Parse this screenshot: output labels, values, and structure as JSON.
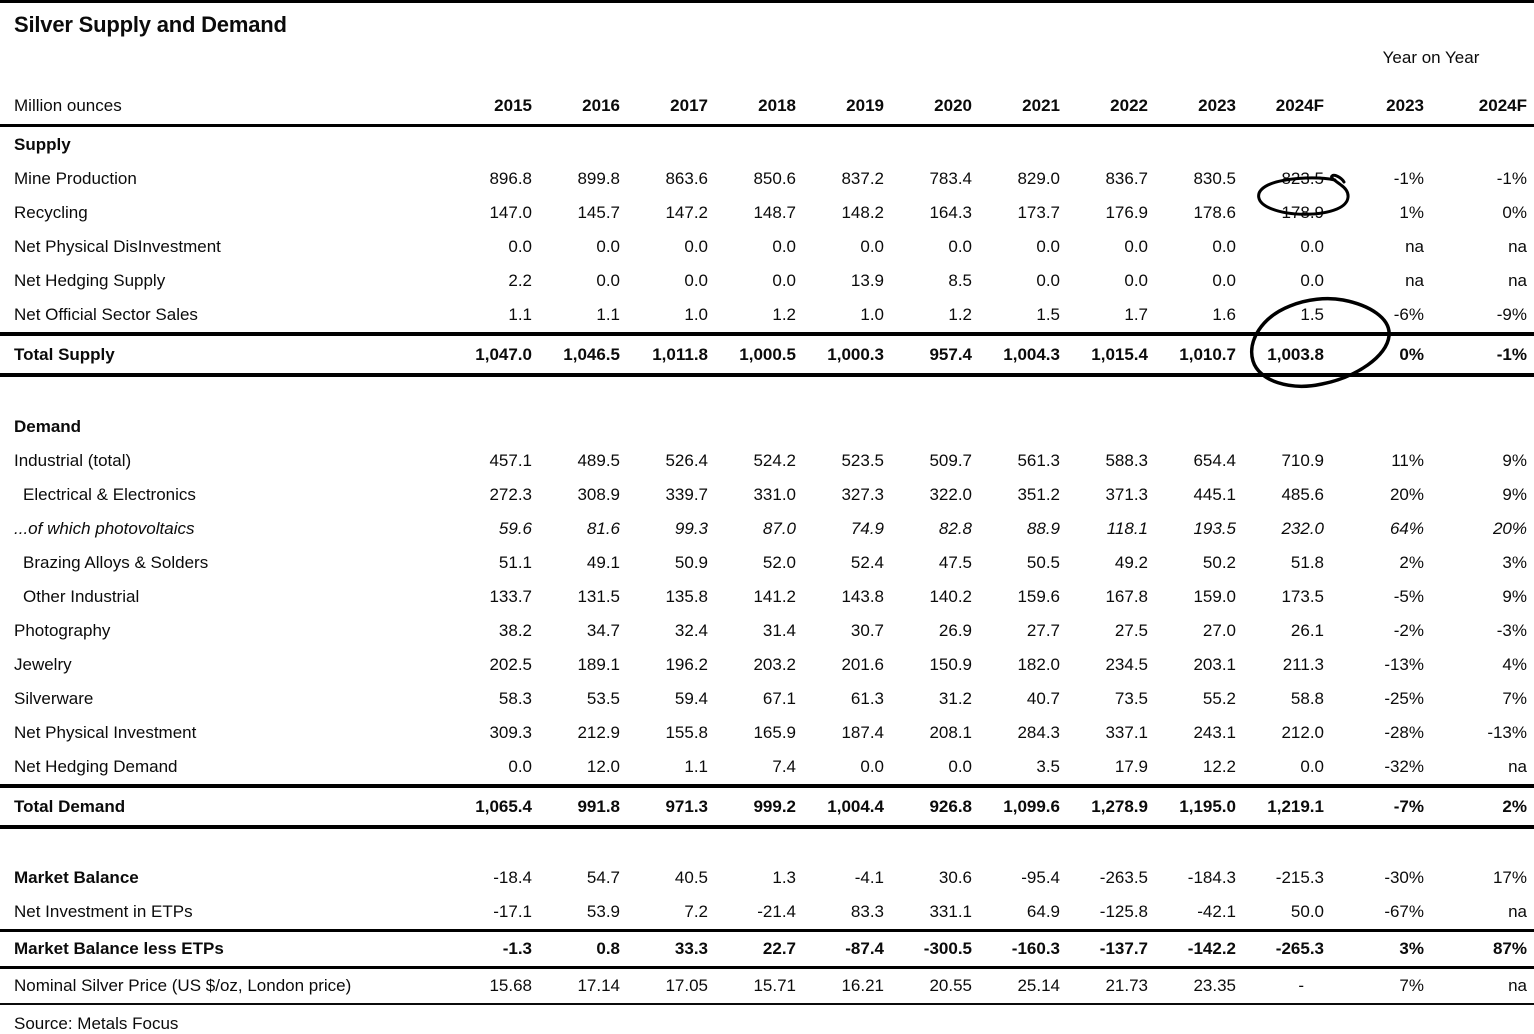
{
  "title": "Silver Supply and Demand",
  "unit_label": "Million ounces",
  "year_on_year_label": "Year on Year",
  "columns": [
    "2015",
    "2016",
    "2017",
    "2018",
    "2019",
    "2020",
    "2021",
    "2022",
    "2023",
    "2024F"
  ],
  "yoy_columns": [
    "2023",
    "2024F"
  ],
  "source": "Source: Metals Focus",
  "table": {
    "sections": [
      {
        "header": "Supply",
        "rows": [
          {
            "label": "Mine Production",
            "values": [
              "896.8",
              "899.8",
              "863.6",
              "850.6",
              "837.2",
              "783.4",
              "829.0",
              "836.7",
              "830.5",
              "823.5",
              "-1%",
              "-1%"
            ]
          },
          {
            "label": "Recycling",
            "values": [
              "147.0",
              "145.7",
              "147.2",
              "148.7",
              "148.2",
              "164.3",
              "173.7",
              "176.9",
              "178.6",
              "178.9",
              "1%",
              "0%"
            ]
          },
          {
            "label": "Net Physical DisInvestment",
            "values": [
              "0.0",
              "0.0",
              "0.0",
              "0.0",
              "0.0",
              "0.0",
              "0.0",
              "0.0",
              "0.0",
              "0.0",
              "na",
              "na"
            ]
          },
          {
            "label": "Net Hedging Supply",
            "values": [
              "2.2",
              "0.0",
              "0.0",
              "0.0",
              "13.9",
              "8.5",
              "0.0",
              "0.0",
              "0.0",
              "0.0",
              "na",
              "na"
            ]
          },
          {
            "label": "Net Official Sector Sales",
            "values": [
              "1.1",
              "1.1",
              "1.0",
              "1.2",
              "1.0",
              "1.2",
              "1.5",
              "1.7",
              "1.6",
              "1.5",
              "-6%",
              "-9%"
            ]
          }
        ],
        "total": {
          "label": "Total Supply",
          "variant": "heavy",
          "values": [
            "1,047.0",
            "1,046.5",
            "1,011.8",
            "1,000.5",
            "1,000.3",
            "957.4",
            "1,004.3",
            "1,015.4",
            "1,010.7",
            "1,003.8",
            "0%",
            "-1%"
          ]
        },
        "gap_after": true
      },
      {
        "header": "Demand",
        "rows": [
          {
            "label": "Industrial (total)",
            "values": [
              "457.1",
              "489.5",
              "526.4",
              "524.2",
              "523.5",
              "509.7",
              "561.3",
              "588.3",
              "654.4",
              "710.9",
              "11%",
              "9%"
            ]
          },
          {
            "label": "Electrical & Electronics",
            "indent": true,
            "values": [
              "272.3",
              "308.9",
              "339.7",
              "331.0",
              "327.3",
              "322.0",
              "351.2",
              "371.3",
              "445.1",
              "485.6",
              "20%",
              "9%"
            ]
          },
          {
            "label": "...of which photovoltaics",
            "em": true,
            "values": [
              "59.6",
              "81.6",
              "99.3",
              "87.0",
              "74.9",
              "82.8",
              "88.9",
              "118.1",
              "193.5",
              "232.0",
              "64%",
              "20%"
            ]
          },
          {
            "label": "Brazing Alloys & Solders",
            "indent": true,
            "values": [
              "51.1",
              "49.1",
              "50.9",
              "52.0",
              "52.4",
              "47.5",
              "50.5",
              "49.2",
              "50.2",
              "51.8",
              "2%",
              "3%"
            ]
          },
          {
            "label": "Other Industrial",
            "indent": true,
            "values": [
              "133.7",
              "131.5",
              "135.8",
              "141.2",
              "143.8",
              "140.2",
              "159.6",
              "167.8",
              "159.0",
              "173.5",
              "-5%",
              "9%"
            ]
          },
          {
            "label": "Photography",
            "values": [
              "38.2",
              "34.7",
              "32.4",
              "31.4",
              "30.7",
              "26.9",
              "27.7",
              "27.5",
              "27.0",
              "26.1",
              "-2%",
              "-3%"
            ]
          },
          {
            "label": "Jewelry",
            "values": [
              "202.5",
              "189.1",
              "196.2",
              "203.2",
              "201.6",
              "150.9",
              "182.0",
              "234.5",
              "203.1",
              "211.3",
              "-13%",
              "4%"
            ]
          },
          {
            "label": "Silverware",
            "values": [
              "58.3",
              "53.5",
              "59.4",
              "67.1",
              "61.3",
              "31.2",
              "40.7",
              "73.5",
              "55.2",
              "58.8",
              "-25%",
              "7%"
            ]
          },
          {
            "label": "Net Physical Investment",
            "values": [
              "309.3",
              "212.9",
              "155.8",
              "165.9",
              "187.4",
              "208.1",
              "284.3",
              "337.1",
              "243.1",
              "212.0",
              "-28%",
              "-13%"
            ]
          },
          {
            "label": "Net Hedging Demand",
            "values": [
              "0.0",
              "12.0",
              "1.1",
              "7.4",
              "0.0",
              "0.0",
              "3.5",
              "17.9",
              "12.2",
              "0.0",
              "-32%",
              "na"
            ]
          }
        ],
        "total": {
          "label": "Total Demand",
          "variant": "heavy",
          "values": [
            "1,065.4",
            "991.8",
            "971.3",
            "999.2",
            "1,004.4",
            "926.8",
            "1,099.6",
            "1,278.9",
            "1,195.0",
            "1,219.1",
            "-7%",
            "2%"
          ]
        },
        "gap_after": true
      },
      {
        "header": null,
        "rows": [
          {
            "label": "Market Balance",
            "bold_label": true,
            "values": [
              "-18.4",
              "54.7",
              "40.5",
              "1.3",
              "-4.1",
              "30.6",
              "-95.4",
              "-263.5",
              "-184.3",
              "-215.3",
              "-30%",
              "17%"
            ]
          },
          {
            "label": "Net Investment in ETPs",
            "values": [
              "-17.1",
              "53.9",
              "7.2",
              "-21.4",
              "83.3",
              "331.1",
              "64.9",
              "-125.8",
              "-42.1",
              "50.0",
              "-67%",
              "na"
            ]
          }
        ],
        "total": {
          "label": "Market Balance less ETPs",
          "variant": "medium",
          "values": [
            "-1.3",
            "0.8",
            "33.3",
            "22.7",
            "-87.4",
            "-300.5",
            "-160.3",
            "-137.7",
            "-142.2",
            "-265.3",
            "3%",
            "87%"
          ]
        },
        "gap_after": false
      }
    ],
    "price_row": {
      "label": "Nominal Silver Price (US $/oz, London price)",
      "values": [
        "15.68",
        "17.14",
        "17.05",
        "15.71",
        "16.21",
        "20.55",
        "25.14",
        "21.73",
        "23.35",
        "-",
        "7%",
        "na"
      ]
    }
  },
  "annotations": [
    {
      "shape": "hand-drawn-circle",
      "around": "Recycling 2024F value",
      "value": "178.9",
      "color": "#000000"
    },
    {
      "shape": "hand-drawn-circle",
      "around": "Total Supply 2024F value",
      "value": "1,003.8",
      "color": "#000000"
    }
  ]
}
